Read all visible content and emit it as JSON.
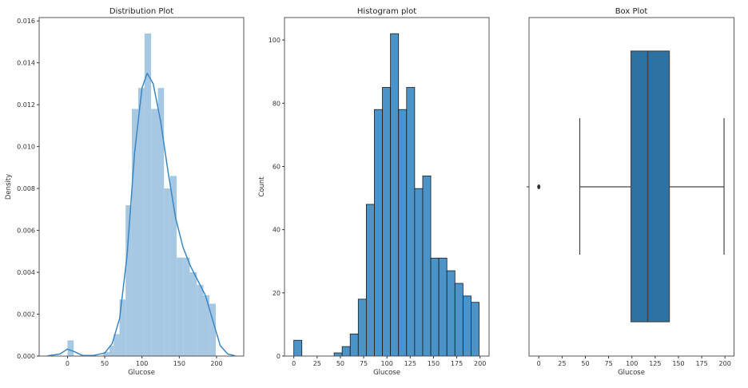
{
  "chart_data": [
    {
      "type": "bar",
      "title": "Distribution Plot",
      "xlabel": "Glucose",
      "ylabel": "Density",
      "xlim": [
        -38,
        236.5
      ],
      "ylim": [
        0,
        0.01616
      ],
      "xticks": [
        0,
        50,
        100,
        150,
        200
      ],
      "yticks": [
        "0.000",
        "0.002",
        "0.004",
        "0.006",
        "0.008",
        "0.010",
        "0.012",
        "0.014",
        "0.016"
      ],
      "bar_color": "#a6c8e2",
      "line_color": "#3a87c4",
      "bins": [
        {
          "x0": 0,
          "x1": 8.4,
          "density": 0.00075
        },
        {
          "x0": 48,
          "x1": 56.4,
          "density": 0.0002
        },
        {
          "x0": 56.4,
          "x1": 62,
          "density": 0.0005
        },
        {
          "x0": 62,
          "x1": 69.8,
          "density": 0.00105
        },
        {
          "x0": 69.8,
          "x1": 78,
          "density": 0.0027
        },
        {
          "x0": 78,
          "x1": 86.3,
          "density": 0.0072
        },
        {
          "x0": 86.3,
          "x1": 94.9,
          "density": 0.0118
        },
        {
          "x0": 94.9,
          "x1": 103.4,
          "density": 0.0128
        },
        {
          "x0": 103.4,
          "x1": 112.3,
          "density": 0.0154
        },
        {
          "x0": 112.3,
          "x1": 121.3,
          "density": 0.0118
        },
        {
          "x0": 121.3,
          "x1": 129.5,
          "density": 0.0128
        },
        {
          "x0": 129.5,
          "x1": 137.7,
          "density": 0.008
        },
        {
          "x0": 137.7,
          "x1": 146.6,
          "density": 0.0086
        },
        {
          "x0": 146.6,
          "x1": 155.2,
          "density": 0.0047
        },
        {
          "x0": 155.2,
          "x1": 164.1,
          "density": 0.0047
        },
        {
          "x0": 164.1,
          "x1": 173.4,
          "density": 0.004
        },
        {
          "x0": 173.4,
          "x1": 182.3,
          "density": 0.0034
        },
        {
          "x0": 182.3,
          "x1": 190.5,
          "density": 0.0029
        },
        {
          "x0": 190.5,
          "x1": 199,
          "density": 0.0025
        }
      ],
      "kde": {
        "x": [
          -27,
          -10,
          0,
          10,
          20,
          35,
          50,
          60,
          70,
          80,
          90,
          100,
          107,
          115,
          125,
          135,
          145,
          155,
          165,
          175,
          185,
          195,
          205,
          215,
          225
        ],
        "y": [
          1e-05,
          0.0001,
          0.00033,
          0.0002,
          3e-05,
          3e-05,
          0.00015,
          0.0006,
          0.0018,
          0.0048,
          0.0097,
          0.0128,
          0.0135,
          0.013,
          0.0112,
          0.0088,
          0.0066,
          0.0052,
          0.0043,
          0.0036,
          0.0029,
          0.0017,
          0.0005,
          0.0001,
          1e-05
        ]
      }
    },
    {
      "type": "bar",
      "title": "Histogram plot",
      "xlabel": "Glucose",
      "ylabel": "Count",
      "xlim": [
        -10,
        209.7
      ],
      "ylim": [
        0,
        107.1
      ],
      "xticks": [
        0,
        25,
        50,
        75,
        100,
        125,
        150,
        175,
        200
      ],
      "yticks": [
        0,
        20,
        40,
        60,
        80,
        100
      ],
      "bar_color": "#4c93c8",
      "bin_start": 0,
      "bin_width": 8.652,
      "counts": [
        5,
        0,
        0,
        0,
        0,
        1,
        3,
        7,
        18,
        48,
        78,
        85,
        102,
        78,
        85,
        53,
        57,
        31,
        31,
        27,
        23,
        19,
        17
      ]
    },
    {
      "type": "box",
      "title": "Box Plot",
      "xlabel": "Glucose",
      "xlim": [
        -10.5,
        209.7
      ],
      "xticks": [
        0,
        25,
        50,
        75,
        100,
        125,
        150,
        175,
        200
      ],
      "box_color": "#2e71a3",
      "whisker_low": 44,
      "q1": 99,
      "median": 117,
      "q3": 140.25,
      "whisker_high": 199,
      "outliers": [
        0
      ]
    }
  ]
}
